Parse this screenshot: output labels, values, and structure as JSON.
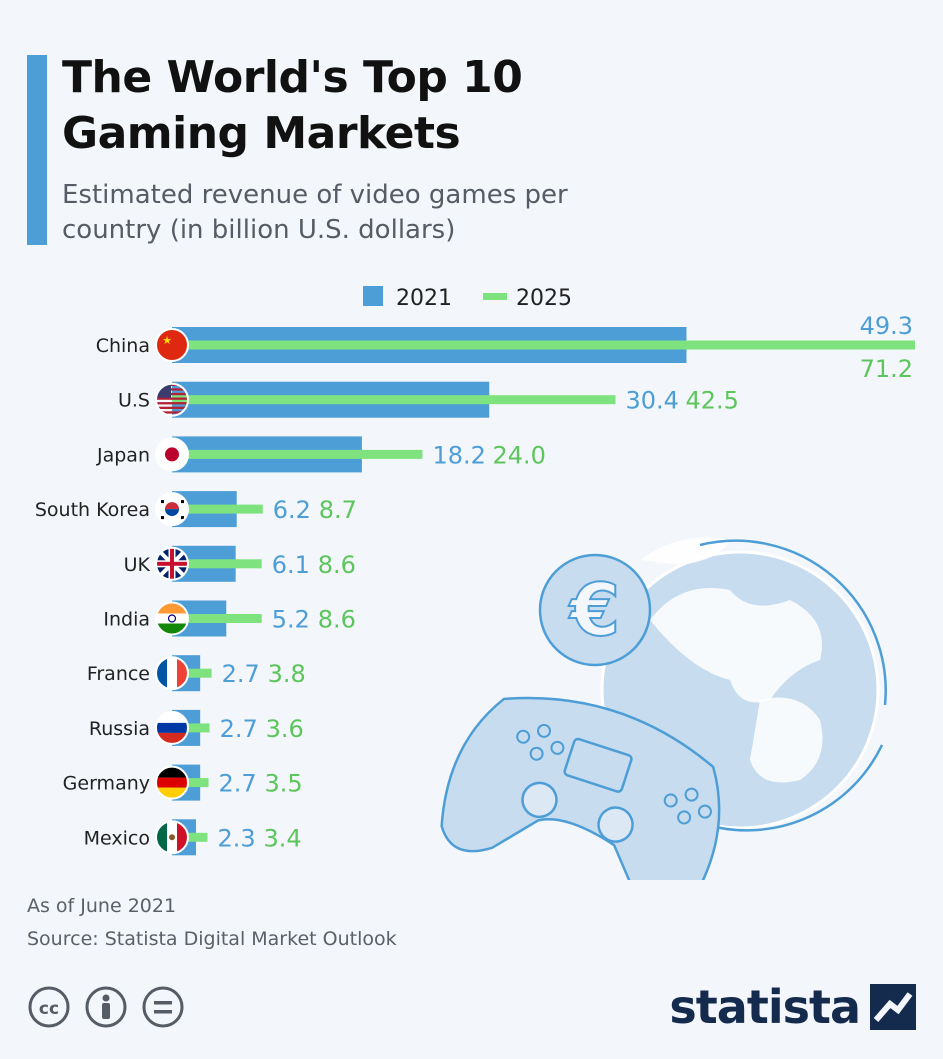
{
  "header": {
    "title": "The World's Top 10 Gaming Markets",
    "subtitle": "Estimated revenue of video games per country (in billion U.S. dollars)"
  },
  "legend": [
    {
      "label": "2021",
      "color": "#4d9ed6"
    },
    {
      "label": "2025",
      "color": "#7ee37f"
    }
  ],
  "chart_data": {
    "type": "bar",
    "orientation": "horizontal",
    "categories": [
      "China",
      "U.S",
      "Japan",
      "South Korea",
      "UK",
      "India",
      "France",
      "Russia",
      "Germany",
      "Mexico"
    ],
    "series": [
      {
        "name": "2021",
        "color": "#4d9ed6",
        "values": [
          49.3,
          30.4,
          18.2,
          6.2,
          6.1,
          5.2,
          2.7,
          2.7,
          2.7,
          2.3
        ],
        "labels": [
          "49.3",
          "30.4",
          "18.2",
          "6.2",
          "6.1",
          "5.2",
          "2.7",
          "2.7",
          "2.7",
          "2.3"
        ]
      },
      {
        "name": "2025",
        "color": "#7ee37f",
        "values": [
          71.2,
          42.5,
          24.0,
          8.7,
          8.6,
          8.6,
          3.8,
          3.6,
          3.5,
          3.4
        ],
        "labels": [
          "71.2",
          "42.5",
          "24.0",
          "8.7",
          "8.6",
          "8.6",
          "3.8",
          "3.6",
          "3.5",
          "3.4"
        ]
      }
    ],
    "xlim": [
      0,
      71.2
    ],
    "legend_position": "top-center",
    "grid": false
  },
  "flags": [
    "china-flag",
    "us-flag",
    "japan-flag",
    "south-korea-flag",
    "uk-flag",
    "india-flag",
    "france-flag",
    "russia-flag",
    "germany-flag",
    "mexico-flag"
  ],
  "footer": {
    "date": "As of June 2021",
    "source": "Source: Statista Digital Market Outlook"
  },
  "brand": {
    "name": "statista"
  },
  "icons": [
    "cc-icon",
    "attribution-icon",
    "no-derivatives-icon",
    "globe-illustration",
    "euro-icon",
    "gamepad-illustration"
  ]
}
